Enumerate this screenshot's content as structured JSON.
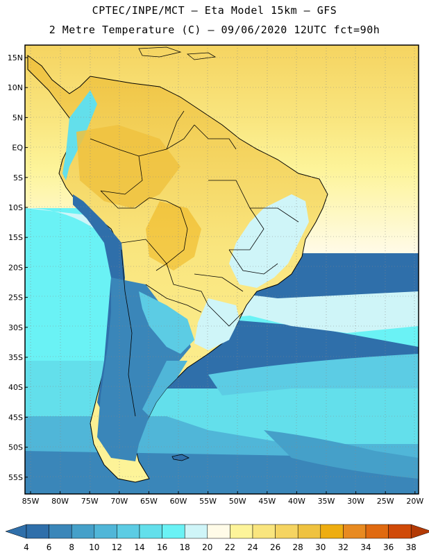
{
  "header": {
    "line1": "CPTEC/INPE/MCT –  Eta Model 15km – GFS",
    "line2": "2 Metre Temperature (C) – 09/06/2020 12UTC fct=90h"
  },
  "map": {
    "lat_labels": [
      "15N",
      "10N",
      "5N",
      "EQ",
      "5S",
      "10S",
      "15S",
      "20S",
      "25S",
      "30S",
      "35S",
      "40S",
      "45S",
      "50S",
      "55S"
    ],
    "lon_labels": [
      "85W",
      "80W",
      "75W",
      "70W",
      "65W",
      "60W",
      "55W",
      "50W",
      "45W",
      "40W",
      "35W",
      "30W",
      "25W",
      "20W"
    ],
    "lat_range": [
      -57.5,
      16.5
    ],
    "lon_range": [
      -86,
      -19.5
    ]
  },
  "colorbar": {
    "levels": [
      "4",
      "6",
      "8",
      "10",
      "12",
      "14",
      "16",
      "18",
      "20",
      "22",
      "24",
      "26",
      "28",
      "30",
      "32",
      "34",
      "36",
      "38"
    ],
    "colors": [
      "#2f6faa",
      "#2f6faa",
      "#3a86b9",
      "#45a0c9",
      "#50b6d8",
      "#5ccce4",
      "#63dfeb",
      "#6af2f5",
      "#cff5f8",
      "#fffbe8",
      "#fdf49a",
      "#f9e57e",
      "#f5d461",
      "#efc240",
      "#eead10",
      "#e88a20",
      "#e06a10",
      "#d04a08",
      "#b33a05"
    ]
  }
}
